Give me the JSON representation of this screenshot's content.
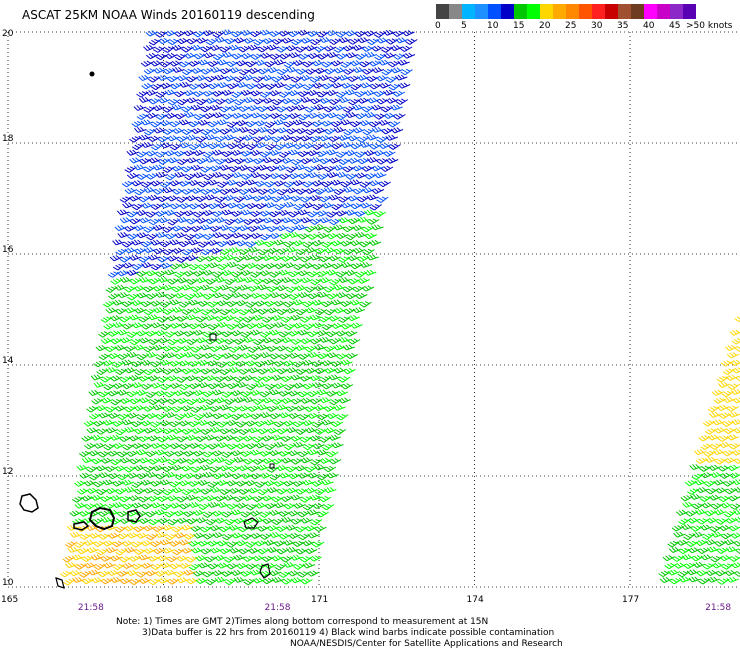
{
  "title": "ASCAT 25KM NOAA Winds 20160119 descending",
  "legend": {
    "bins": [
      {
        "label": "0",
        "color": "#444444"
      },
      {
        "label": "",
        "color": "#888888"
      },
      {
        "label": "5",
        "color": "#00b4ff"
      },
      {
        "label": "",
        "color": "#1e90ff"
      },
      {
        "label": "10",
        "color": "#0050ff"
      },
      {
        "label": "",
        "color": "#0000c8"
      },
      {
        "label": "15",
        "color": "#00c800"
      },
      {
        "label": "",
        "color": "#00ff00"
      },
      {
        "label": "20",
        "color": "#ffd700"
      },
      {
        "label": "",
        "color": "#ffaa00"
      },
      {
        "label": "25",
        "color": "#ff8800"
      },
      {
        "label": "",
        "color": "#ff5500"
      },
      {
        "label": "30",
        "color": "#ff2020"
      },
      {
        "label": "",
        "color": "#c80000"
      },
      {
        "label": "35",
        "color": "#a05030"
      },
      {
        "label": "",
        "color": "#6e3c1e"
      },
      {
        "label": "40",
        "color": "#ff00ff"
      },
      {
        "label": "",
        "color": "#c800c8"
      },
      {
        "label": "45",
        "color": "#8c28c8"
      },
      {
        "label": "",
        "color": "#5a00b4"
      }
    ],
    "end_label": ">50 knots"
  },
  "map": {
    "lon_range": [
      165,
      179
    ],
    "lat_range": [
      10,
      20
    ],
    "lat_ticks": [
      "10",
      "12",
      "14",
      "16",
      "18",
      "20"
    ],
    "lon_ticks": [
      "165",
      "168",
      "171",
      "174",
      "177"
    ],
    "time_labels": [
      {
        "text": "21:58",
        "lon": 166.6
      },
      {
        "text": "21:58",
        "lon": 170.2
      },
      {
        "text": "21:58",
        "lon": 178.7
      }
    ],
    "swaths": [
      {
        "lat_min": 10,
        "lat_max": 20,
        "lon_west_at_min": 166.0,
        "lon_west_at_max": 167.7,
        "lon_east_at_min": 170.8,
        "lon_east_at_max": 172.8
      },
      {
        "lat_min": 10,
        "lat_max": 16.9,
        "lon_west_at_min": 177.5,
        "lon_west_at_max": 179.7,
        "lon_east_at_min": 179.8,
        "lon_east_at_max": 179.8
      }
    ]
  },
  "notes": [
    "Note: 1) Times are GMT 2)Times along bottom correspond to measurement at 15N",
    "3)Data buffer is 22 hrs from 20160119 4) Black wind barbs indicate possible contamination",
    "NOAA/NESDIS/Center for Satellite Applications and Research"
  ]
}
